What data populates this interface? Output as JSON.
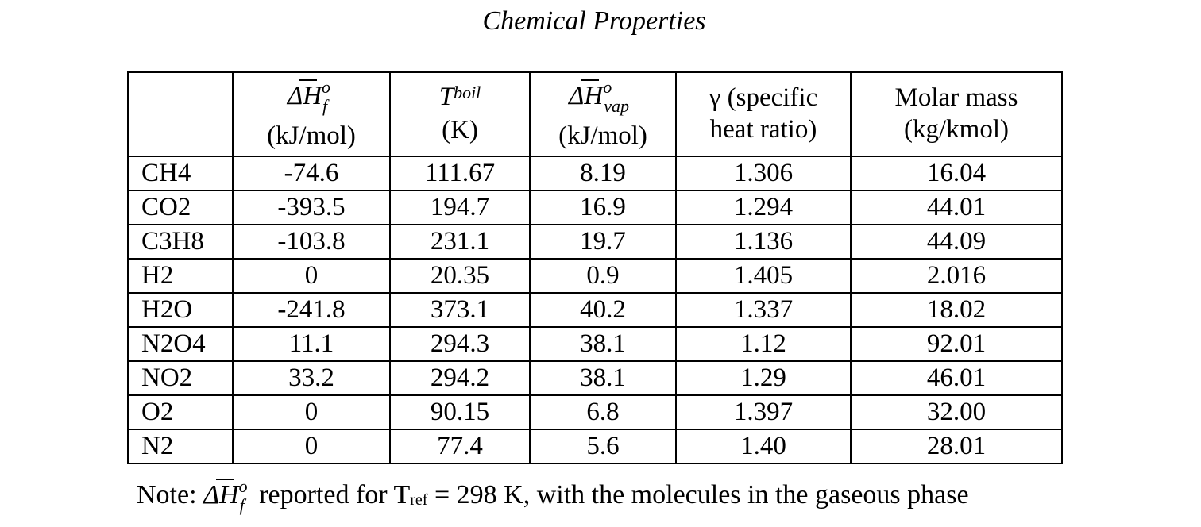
{
  "title": "Chemical Properties",
  "headers": {
    "species": "",
    "h_formation": {
      "symbol": "ΔH",
      "sup": "o",
      "sub": "f",
      "unit": "(kJ/mol)"
    },
    "t_boil": {
      "symbol": "T",
      "sub": "boil",
      "unit": "(K)"
    },
    "h_vap": {
      "symbol": "ΔH",
      "sup": "o",
      "sub": "vap",
      "unit": "(kJ/mol)"
    },
    "gamma": {
      "line1": "γ (specific",
      "line2": "heat ratio)"
    },
    "molar_mass": {
      "line1": "Molar mass",
      "line2": "(kg/kmol)"
    }
  },
  "rows": [
    {
      "species": "CH4",
      "h_f": "-74.6",
      "t_boil": "111.67",
      "h_vap": "8.19",
      "gamma": "1.306",
      "molar_mass": "16.04"
    },
    {
      "species": "CO2",
      "h_f": "-393.5",
      "t_boil": "194.7",
      "h_vap": "16.9",
      "gamma": "1.294",
      "molar_mass": "44.01"
    },
    {
      "species": "C3H8",
      "h_f": "-103.8",
      "t_boil": "231.1",
      "h_vap": "19.7",
      "gamma": "1.136",
      "molar_mass": "44.09"
    },
    {
      "species": "H2",
      "h_f": "0",
      "t_boil": "20.35",
      "h_vap": "0.9",
      "gamma": "1.405",
      "molar_mass": "2.016"
    },
    {
      "species": "H2O",
      "h_f": "-241.8",
      "t_boil": "373.1",
      "h_vap": "40.2",
      "gamma": "1.337",
      "molar_mass": "18.02"
    },
    {
      "species": "N2O4",
      "h_f": "11.1",
      "t_boil": "294.3",
      "h_vap": "38.1",
      "gamma": "1.12",
      "molar_mass": "92.01"
    },
    {
      "species": "NO2",
      "h_f": "33.2",
      "t_boil": "294.2",
      "h_vap": "38.1",
      "gamma": "1.29",
      "molar_mass": "46.01"
    },
    {
      "species": "O2",
      "h_f": "0",
      "t_boil": "90.15",
      "h_vap": "6.8",
      "gamma": "1.397",
      "molar_mass": "32.00"
    },
    {
      "species": "N2",
      "h_f": "0",
      "t_boil": "77.4",
      "h_vap": "5.6",
      "gamma": "1.40",
      "molar_mass": "28.01"
    }
  ],
  "note": {
    "prefix": "Note:",
    "symbol": "ΔH",
    "sup": "o",
    "sub": "f",
    "middle": "reported for T",
    "ref_sub": "ref",
    "suffix": "= 298 K, with the molecules in the gaseous phase"
  }
}
